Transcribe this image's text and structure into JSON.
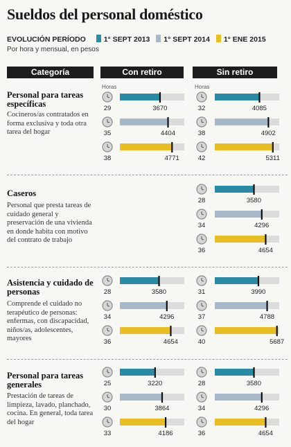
{
  "title": "Sueldos del personal doméstico",
  "legend": {
    "lead": "EVOLUCIÓN PERÍODO",
    "items": [
      {
        "label": "1° SEPT 2013",
        "color": "#2a8ba6"
      },
      {
        "label": "1° SEPT 2014",
        "color": "#a7b9c8"
      },
      {
        "label": "1° ENE 2015",
        "color": "#e8be22"
      }
    ]
  },
  "subtitle": "Por hora y mensual, en pesos",
  "columns": {
    "category": "Categoría",
    "con_retiro": "Con retiro",
    "sin_retiro": "Sin retiro"
  },
  "hours_label": "Horas",
  "categories": [
    {
      "title": "Personal para tareas específicas",
      "desc": "Cocineros/as contratados en forma exclusiva y toda otra tarea del hogar"
    },
    {
      "title": "Caseros",
      "desc": "Personal que presta tareas de cuidado general y preservación de una vivienda en donde habita con motivo del contrato de trabajo"
    },
    {
      "title": "Asistencia y cuidado de personas",
      "desc": "Comprende el cuidado no terapéutico de personas: enfermas, con discapacidad, niños/as, adolescentes, mayores"
    },
    {
      "title": "Personal para tareas generales",
      "desc": "Prestación de tareas de limpieza, lavado, planchado, cocina. En general, toda tarea del hogar"
    }
  ],
  "chart_data": {
    "type": "bar",
    "title": "Sueldos del personal doméstico",
    "unit": "pesos",
    "series": [
      "1° SEPT 2013",
      "1° SEPT 2014",
      "1° ENE 2015"
    ],
    "groups": [
      {
        "category": "Personal para tareas específicas",
        "con_retiro": {
          "hours": [
            29,
            35,
            38
          ],
          "values": [
            3670,
            4404,
            4771
          ]
        },
        "sin_retiro": {
          "hours": [
            32,
            38,
            42
          ],
          "values": [
            4085,
            4902,
            5311
          ]
        }
      },
      {
        "category": "Caseros",
        "con_retiro": null,
        "sin_retiro": {
          "hours": [
            28,
            34,
            36
          ],
          "values": [
            3580,
            4296,
            4654
          ]
        }
      },
      {
        "category": "Asistencia y cuidado de personas",
        "con_retiro": {
          "hours": [
            28,
            34,
            36
          ],
          "values": [
            3580,
            4296,
            4654
          ]
        },
        "sin_retiro": {
          "hours": [
            31,
            37,
            40
          ],
          "values": [
            3990,
            4788,
            5687
          ]
        }
      },
      {
        "category": "Personal para tareas generales",
        "con_retiro": {
          "hours": [
            25,
            30,
            33
          ],
          "values": [
            3220,
            3864,
            4186
          ]
        },
        "sin_retiro": {
          "hours": [
            28,
            34,
            36
          ],
          "values": [
            3580,
            4296,
            4654
          ]
        }
      }
    ],
    "xlim": [
      0,
      5900
    ]
  }
}
